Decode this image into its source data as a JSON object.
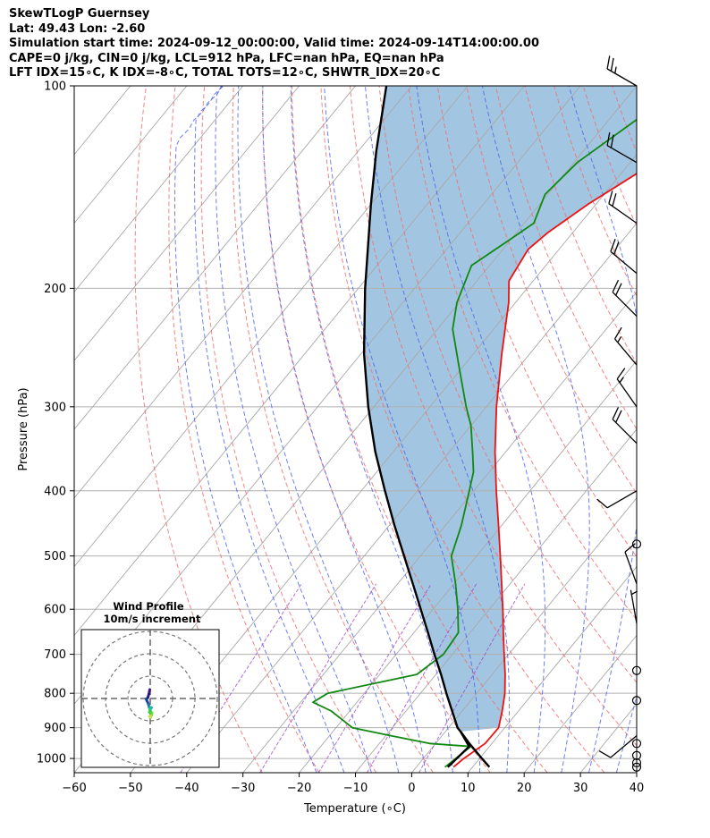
{
  "title_lines": [
    "SkewTLogP Guernsey",
    "Lat: 49.43   Lon: -2.60",
    "Simulation start time: 2024-09-12_00:00:00, Valid time: 2024-09-14T14:00:00.00",
    "CAPE=0 j/kg, CIN=0 j/kg, LCL=912 hPa, LFC=nan hPa, EQ=nan hPa",
    "LFT IDX=15∘C, K IDX=-8∘C, TOTAL TOTS=12∘C, SHWTR_IDX=20∘C"
  ],
  "chart_data": {
    "type": "skewt",
    "xlabel": "Temperature (∘C)",
    "ylabel": "Pressure (hPa)",
    "xlim": [
      -60,
      40
    ],
    "ylim": [
      1050,
      100
    ],
    "y_log_scale": true,
    "x_ticks": [
      -60,
      -50,
      -40,
      -30,
      -20,
      -10,
      0,
      10,
      20,
      30,
      40
    ],
    "x_tick_labels": [
      "−60",
      "−50",
      "−40",
      "−30",
      "−20",
      "−10",
      "0",
      "10",
      "20",
      "30",
      "40"
    ],
    "y_ticks": [
      1000,
      900,
      800,
      700,
      600,
      500,
      400,
      300,
      200,
      100
    ],
    "y_tick_labels": [
      "1000",
      "900",
      "800",
      "700",
      "600",
      "500",
      "400",
      "300",
      "200",
      "100"
    ],
    "grid": true,
    "colors": {
      "temperature": "#ee1111",
      "dewpoint": "#118811",
      "parcel": "#000000",
      "shade": "#7eb0d5",
      "dry_adiabat": "#f07070",
      "moist_adiabat": "#4a5ff0",
      "mixing_ratio": "#9a40c8",
      "isotherm": "#999999"
    },
    "series": [
      {
        "key": "temperature",
        "points": [
          [
            1030,
            6.6
          ],
          [
            1000,
            7.2
          ],
          [
            950,
            8.8
          ],
          [
            900,
            8.9
          ],
          [
            850,
            7.1
          ],
          [
            800,
            5.0
          ],
          [
            750,
            2.3
          ],
          [
            700,
            -0.8
          ],
          [
            650,
            -4.1
          ],
          [
            600,
            -7.6
          ],
          [
            550,
            -11.5
          ],
          [
            500,
            -15.8
          ],
          [
            450,
            -20.6
          ],
          [
            400,
            -26.0
          ],
          [
            350,
            -31.9
          ],
          [
            300,
            -38.2
          ],
          [
            250,
            -45.0
          ],
          [
            210,
            -51.2
          ],
          [
            195,
            -54.3
          ],
          [
            175,
            -55.5
          ],
          [
            165,
            -54.4
          ],
          [
            150,
            -51.4
          ],
          [
            135,
            -47.2
          ],
          [
            122,
            -45.3
          ],
          [
            110,
            -43.3
          ],
          [
            100,
            -42.8
          ]
        ]
      },
      {
        "key": "dewpoint",
        "points": [
          [
            1030,
            5.1
          ],
          [
            960,
            6.7
          ],
          [
            950,
            -1.1
          ],
          [
            925,
            -9.1
          ],
          [
            900,
            -17.1
          ],
          [
            850,
            -23.3
          ],
          [
            825,
            -27.8
          ],
          [
            800,
            -26.5
          ],
          [
            750,
            -13.4
          ],
          [
            700,
            -11.6
          ],
          [
            650,
            -12.1
          ],
          [
            600,
            -15.6
          ],
          [
            550,
            -19.7
          ],
          [
            500,
            -24.5
          ],
          [
            450,
            -27.2
          ],
          [
            400,
            -30.8
          ],
          [
            375,
            -32.8
          ],
          [
            350,
            -35.9
          ],
          [
            320,
            -40.0
          ],
          [
            300,
            -43.6
          ],
          [
            260,
            -51.0
          ],
          [
            230,
            -57.3
          ],
          [
            210,
            -60.4
          ],
          [
            185,
            -63.2
          ],
          [
            170,
            -60.3
          ],
          [
            160,
            -58.3
          ],
          [
            145,
            -60.5
          ],
          [
            130,
            -59.4
          ],
          [
            100,
            -51.7
          ]
        ]
      },
      {
        "key": "parcel",
        "points": [
          [
            1030,
            13.0
          ],
          [
            1000,
            10.4
          ],
          [
            950,
            6.0
          ],
          [
            912,
            2.7
          ],
          [
            900,
            1.6
          ],
          [
            850,
            -1.8
          ],
          [
            800,
            -5.4
          ],
          [
            750,
            -9.1
          ],
          [
            700,
            -13.2
          ],
          [
            650,
            -17.5
          ],
          [
            600,
            -22.2
          ],
          [
            550,
            -27.3
          ],
          [
            500,
            -32.9
          ],
          [
            450,
            -39.1
          ],
          [
            400,
            -45.8
          ],
          [
            350,
            -53.2
          ],
          [
            300,
            -61.0
          ],
          [
            250,
            -69.5
          ],
          [
            200,
            -78.8
          ],
          [
            150,
            -90.0
          ],
          [
            125,
            -96.8
          ],
          [
            100,
            -104.5
          ]
        ]
      },
      {
        "key": "parcel_dry_leg",
        "points": [
          [
            1030,
            5.6
          ],
          [
            960,
            6.4
          ],
          [
            912,
            2.7
          ]
        ]
      }
    ],
    "wind_barbs": [
      {
        "p": 100,
        "speed_kt": 25,
        "dir_deg": 300
      },
      {
        "p": 130,
        "speed_kt": 20,
        "dir_deg": 300
      },
      {
        "p": 160,
        "speed_kt": 20,
        "dir_deg": 305
      },
      {
        "p": 190,
        "speed_kt": 20,
        "dir_deg": 310
      },
      {
        "p": 220,
        "speed_kt": 20,
        "dir_deg": 315
      },
      {
        "p": 260,
        "speed_kt": 15,
        "dir_deg": 320
      },
      {
        "p": 300,
        "speed_kt": 15,
        "dir_deg": 325
      },
      {
        "p": 340,
        "speed_kt": 20,
        "dir_deg": 315
      },
      {
        "p": 400,
        "speed_kt": 10,
        "dir_deg": 240
      },
      {
        "p": 480,
        "speed_kt": 0,
        "dir_deg": 0
      },
      {
        "p": 550,
        "speed_kt": 10,
        "dir_deg": 340
      },
      {
        "p": 630,
        "speed_kt": 5,
        "dir_deg": 350
      },
      {
        "p": 740,
        "speed_kt": 0,
        "dir_deg": 0
      },
      {
        "p": 820,
        "speed_kt": 0,
        "dir_deg": 0
      },
      {
        "p": 925,
        "speed_kt": 10,
        "dir_deg": 230
      },
      {
        "p": 950,
        "speed_kt": 0,
        "dir_deg": 0
      },
      {
        "p": 990,
        "speed_kt": 0,
        "dir_deg": 0
      },
      {
        "p": 1015,
        "speed_kt": 0,
        "dir_deg": 0
      },
      {
        "p": 1030,
        "speed_kt": 0,
        "dir_deg": 0
      }
    ],
    "hodograph": {
      "title": "Wind Profile",
      "subtitle": "10m/s increment",
      "ring_count": 3,
      "points_uv": [
        [
          -0.2,
          -4.0
        ],
        [
          -0.6,
          -2.0
        ],
        [
          -1.1,
          -0.3
        ],
        [
          -1.8,
          0.3
        ],
        [
          -0.8,
          2.5
        ],
        [
          -0.5,
          3.9
        ],
        [
          0.6,
          4.1
        ],
        [
          -0.2,
          5.0
        ],
        [
          0.1,
          5.6
        ],
        [
          -0.4,
          6.1
        ],
        [
          0.8,
          6.5
        ],
        [
          0.6,
          7.5
        ],
        [
          -0.3,
          8.0
        ],
        [
          0.3,
          8.5
        ]
      ]
    }
  }
}
